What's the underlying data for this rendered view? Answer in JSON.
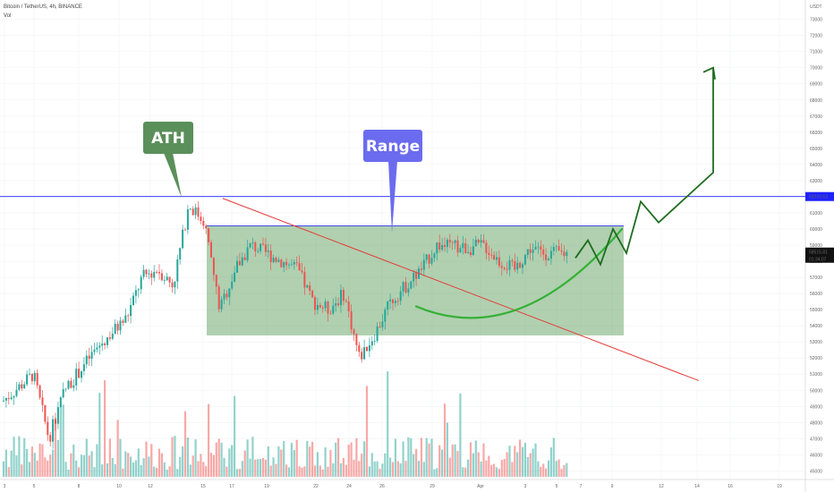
{
  "header": {
    "symbol_line": "Bitcoin / TetherUS, 4h, BINANCE",
    "indicator": "Vol"
  },
  "price_axis": {
    "unit": "USDT",
    "ticks": [
      "73000",
      "72000",
      "71000",
      "70000",
      "69000",
      "68000",
      "67000",
      "66000",
      "65000",
      "64000",
      "63000",
      "62000",
      "61000",
      "60000",
      "59000",
      "58000",
      "57000",
      "56000",
      "55000",
      "54000",
      "53000",
      "52000",
      "51000",
      "50000",
      "49000",
      "48000",
      "47000",
      "46000",
      "45000"
    ],
    "current_price": "58515.81",
    "countdown": "01:34:07",
    "line_price": "62010.53"
  },
  "time_axis": {
    "ticks": [
      "3",
      "5",
      "8",
      "10",
      "12",
      "15",
      "17",
      "19",
      "22",
      "24",
      "26",
      "29",
      "Apr",
      "3",
      "5",
      "7",
      "9",
      "12",
      "14",
      "16",
      "19"
    ]
  },
  "annotations": {
    "ath_label": "ATH",
    "range_label": "Range"
  },
  "colors": {
    "up": "#26a69a",
    "down": "#ef5350",
    "range_fill": "#3a8a3a",
    "trendline": "#e53935",
    "hline": "#1e22ff",
    "ath_bg": "#5a8f5a",
    "range_bg": "#6b6bef",
    "projection": "#1e6b1e",
    "curve": "#35b035"
  },
  "chart_data": {
    "type": "candlestick",
    "title": "Bitcoin / TetherUS, 4h, BINANCE",
    "ylim": [
      44800,
      73700
    ],
    "horizontal_line": 62010.53,
    "range_zone": {
      "low": 53400,
      "high": 60200,
      "from": "Mar 15",
      "to": "Apr 9"
    },
    "trendline": {
      "from": [
        "Mar 14",
        61900
      ],
      "to": [
        "Apr 14",
        50600
      ]
    },
    "path_points": [
      {
        "t": "Mar 2",
        "p": 49300
      },
      {
        "t": "Mar 4",
        "p": 51000
      },
      {
        "t": "Mar 5",
        "p": 47000
      },
      {
        "t": "Mar 6",
        "p": 50000
      },
      {
        "t": "Mar 8",
        "p": 52500
      },
      {
        "t": "Mar 10",
        "p": 54500
      },
      {
        "t": "Mar 11",
        "p": 57000
      },
      {
        "t": "Mar 12",
        "p": 57500
      },
      {
        "t": "Mar 13",
        "p": 56500
      },
      {
        "t": "Mar 14",
        "p": 61500
      },
      {
        "t": "Mar 15",
        "p": 60500
      },
      {
        "t": "Mar 16",
        "p": 55000
      },
      {
        "t": "Mar 17",
        "p": 57500
      },
      {
        "t": "Mar 18",
        "p": 59000
      },
      {
        "t": "Mar 19",
        "p": 58500
      },
      {
        "t": "Mar 20",
        "p": 58000
      },
      {
        "t": "Mar 21",
        "p": 57500
      },
      {
        "t": "Mar 22",
        "p": 55500
      },
      {
        "t": "Mar 23",
        "p": 55000
      },
      {
        "t": "Mar 24",
        "p": 56000
      },
      {
        "t": "Mar 25",
        "p": 52000
      },
      {
        "t": "Mar 26",
        "p": 53500
      },
      {
        "t": "Mar 27",
        "p": 55500
      },
      {
        "t": "Mar 28",
        "p": 56500
      },
      {
        "t": "Mar 29",
        "p": 57500
      },
      {
        "t": "Mar 30",
        "p": 59000
      },
      {
        "t": "Apr 1",
        "p": 58800
      },
      {
        "t": "Apr 2",
        "p": 59000
      },
      {
        "t": "Apr 3",
        "p": 58000
      },
      {
        "t": "Apr 4",
        "p": 57500
      },
      {
        "t": "Apr 5",
        "p": 58800
      },
      {
        "t": "Apr 6",
        "p": 58500
      }
    ],
    "projection_path": [
      58200,
      59300,
      57800,
      60000,
      58500,
      61700,
      60400,
      63500,
      62000,
      70000
    ]
  }
}
